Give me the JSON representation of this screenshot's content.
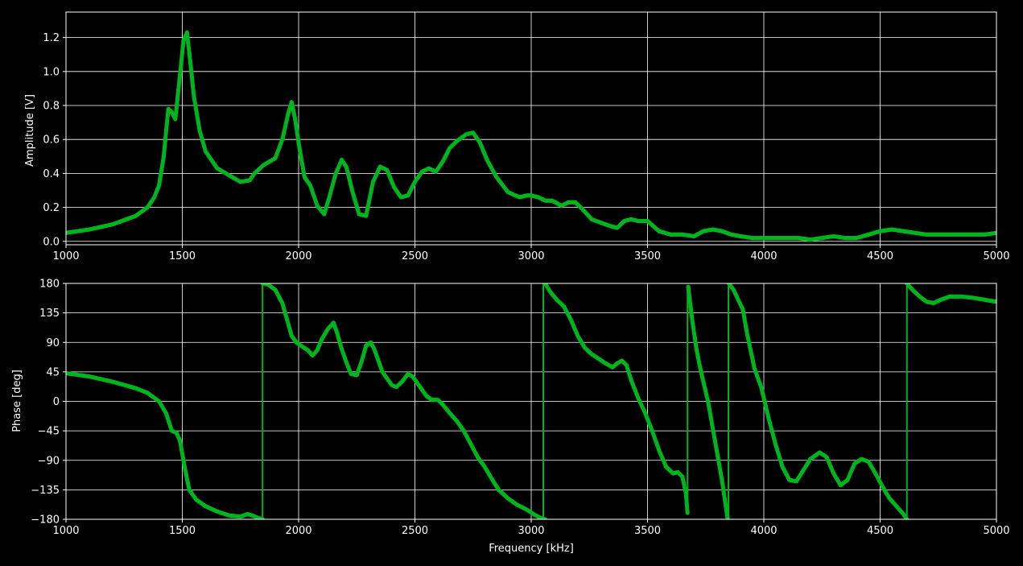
{
  "figure": {
    "background": "#000000",
    "axis_color": "#ffffff",
    "grid_color": "#ffffff",
    "trace_color": "#00b41e",
    "ref_color": "#d8d8b4"
  },
  "chart_data": [
    {
      "type": "line",
      "title": "",
      "xlabel": "",
      "ylabel": "Amplitude [V]",
      "xlim": [
        1000,
        5000
      ],
      "ylim": [
        -0.02,
        1.35
      ],
      "grid": true,
      "xticks": [
        1000,
        1500,
        2000,
        2500,
        3000,
        3500,
        4000,
        4500,
        5000
      ],
      "xtick_labels": [
        "1000",
        "1500",
        "2000",
        "2500",
        "3000",
        "3500",
        "4000",
        "4500",
        "5000"
      ],
      "yticks": [
        0.0,
        0.2,
        0.4,
        0.6,
        0.8,
        1.0,
        1.2
      ],
      "ytick_labels": [
        "0.0",
        "0.2",
        "0.4",
        "0.6",
        "0.8",
        "1.0",
        "1.2"
      ],
      "series": [
        {
          "color": "#00b41e",
          "markers": true,
          "x": [
            1000,
            1100,
            1200,
            1300,
            1350,
            1380,
            1400,
            1420,
            1440,
            1455,
            1470,
            1490,
            1505,
            1520,
            1535,
            1550,
            1575,
            1600,
            1650,
            1700,
            1750,
            1790,
            1810,
            1850,
            1900,
            1930,
            1955,
            1970,
            1985,
            2000,
            2025,
            2050,
            2080,
            2110,
            2130,
            2160,
            2185,
            2205,
            2230,
            2260,
            2290,
            2320,
            2350,
            2380,
            2410,
            2440,
            2470,
            2500,
            2530,
            2560,
            2590,
            2620,
            2650,
            2680,
            2720,
            2750,
            2780,
            2810,
            2850,
            2900,
            2950,
            2980,
            3000,
            3030,
            3060,
            3090,
            3130,
            3160,
            3190,
            3220,
            3260,
            3300,
            3340,
            3370,
            3400,
            3430,
            3460,
            3500,
            3550,
            3600,
            3650,
            3700,
            3740,
            3780,
            3820,
            3860,
            3900,
            3950,
            4000,
            4050,
            4100,
            4150,
            4200,
            4250,
            4300,
            4350,
            4400,
            4450,
            4500,
            4550,
            4600,
            4650,
            4700,
            4750,
            4800,
            4850,
            4900,
            4950,
            5000
          ],
          "y": [
            0.05,
            0.07,
            0.1,
            0.15,
            0.2,
            0.26,
            0.33,
            0.5,
            0.78,
            0.76,
            0.72,
            0.98,
            1.18,
            1.23,
            1.05,
            0.85,
            0.65,
            0.53,
            0.43,
            0.39,
            0.35,
            0.36,
            0.4,
            0.45,
            0.49,
            0.6,
            0.75,
            0.82,
            0.72,
            0.58,
            0.38,
            0.33,
            0.21,
            0.16,
            0.25,
            0.4,
            0.48,
            0.44,
            0.3,
            0.16,
            0.15,
            0.35,
            0.44,
            0.42,
            0.32,
            0.26,
            0.27,
            0.35,
            0.41,
            0.43,
            0.41,
            0.47,
            0.55,
            0.59,
            0.63,
            0.64,
            0.58,
            0.48,
            0.38,
            0.29,
            0.26,
            0.27,
            0.27,
            0.26,
            0.24,
            0.24,
            0.21,
            0.23,
            0.23,
            0.19,
            0.13,
            0.11,
            0.09,
            0.08,
            0.12,
            0.13,
            0.12,
            0.12,
            0.06,
            0.04,
            0.04,
            0.03,
            0.06,
            0.07,
            0.06,
            0.04,
            0.03,
            0.02,
            0.02,
            0.02,
            0.02,
            0.02,
            0.01,
            0.02,
            0.03,
            0.02,
            0.02,
            0.04,
            0.06,
            0.07,
            0.06,
            0.05,
            0.04,
            0.04,
            0.04,
            0.04,
            0.04,
            0.04,
            0.05
          ]
        }
      ]
    },
    {
      "type": "line",
      "title": "",
      "xlabel": "Frequency [kHz]",
      "ylabel": "Phase [deg]",
      "xlim": [
        1000,
        5000
      ],
      "ylim": [
        -180,
        180
      ],
      "grid": true,
      "xticks": [
        1000,
        1500,
        2000,
        2500,
        3000,
        3500,
        4000,
        4500,
        5000
      ],
      "xtick_labels": [
        "1000",
        "1500",
        "2000",
        "2500",
        "3000",
        "3500",
        "4000",
        "4500",
        "5000"
      ],
      "yticks": [
        -180,
        -135,
        -90,
        -45,
        0,
        45,
        90,
        135,
        180
      ],
      "ytick_labels": [
        "−180",
        "−135",
        "−90",
        "−45",
        "0",
        "45",
        "90",
        "135",
        "180"
      ],
      "series": [
        {
          "color": "#00b41e",
          "markers": true,
          "segments": [
            {
              "x": [
                1000,
                1100,
                1200,
                1300,
                1350,
                1400,
                1430,
                1455,
                1475,
                1490,
                1510,
                1530,
                1560,
                1600,
                1650,
                1700,
                1750,
                1780,
                1800,
                1820,
                1845
              ],
              "y": [
                43,
                38,
                30,
                20,
                13,
                0,
                -18,
                -45,
                -48,
                -60,
                -100,
                -135,
                -150,
                -160,
                -168,
                -174,
                -176,
                -172,
                -174,
                -177,
                -180
              ]
            },
            {
              "x": [
                1845,
                1870,
                1900,
                1930,
                1950,
                1970,
                1990,
                2010,
                2040,
                2060,
                2080,
                2100,
                2125,
                2150,
                2165,
                2185,
                2205,
                2225,
                2250,
                2270,
                2290,
                2310,
                2325,
                2340,
                2360,
                2380,
                2400,
                2420,
                2445,
                2470,
                2490,
                2510,
                2530,
                2550,
                2570,
                2600,
                2620,
                2650,
                2680,
                2710,
                2740,
                2770,
                2800,
                2830,
                2860,
                2900,
                2940,
                2980,
                3010,
                3040,
                3060
              ],
              "y": [
                180,
                178,
                170,
                150,
                125,
                100,
                90,
                85,
                78,
                70,
                78,
                95,
                110,
                120,
                105,
                80,
                60,
                42,
                40,
                60,
                85,
                90,
                80,
                65,
                45,
                35,
                25,
                22,
                30,
                42,
                38,
                28,
                18,
                8,
                3,
                2,
                -5,
                -18,
                -30,
                -45,
                -65,
                -85,
                -100,
                -118,
                -135,
                -148,
                -158,
                -165,
                -172,
                -178,
                -180
              ]
            },
            {
              "x": [
                3060,
                3080,
                3110,
                3140,
                3170,
                3200,
                3230,
                3260,
                3290,
                3320,
                3350,
                3370,
                3390,
                3410,
                3430,
                3460,
                3490,
                3520,
                3550,
                3580,
                3610,
                3630,
                3650,
                3665,
                3672
              ],
              "y": [
                180,
                168,
                155,
                145,
                125,
                100,
                82,
                72,
                65,
                58,
                52,
                58,
                62,
                55,
                32,
                5,
                -18,
                -45,
                -75,
                -100,
                -110,
                -108,
                -115,
                -140,
                -170
              ]
            },
            {
              "x": [
                3675,
                3690,
                3710,
                3730,
                3760,
                3790,
                3820,
                3845
              ],
              "y": [
                175,
                130,
                80,
                45,
                0,
                -60,
                -120,
                -180
              ]
            },
            {
              "x": [
                3850,
                3870,
                3890,
                3910,
                3930,
                3960,
                3990,
                4020,
                4050,
                4080,
                4110,
                4140,
                4170,
                4200,
                4240,
                4270,
                4300,
                4330,
                4360,
                4390,
                4420,
                4450,
                4480,
                4510,
                4540,
                4570,
                4600,
                4615
              ],
              "y": [
                180,
                170,
                155,
                140,
                100,
                50,
                20,
                -25,
                -65,
                -100,
                -120,
                -122,
                -105,
                -88,
                -78,
                -85,
                -110,
                -128,
                -120,
                -95,
                -88,
                -92,
                -110,
                -130,
                -148,
                -160,
                -172,
                -180
              ]
            },
            {
              "x": [
                4615,
                4640,
                4670,
                4700,
                4730,
                4760,
                4800,
                4850,
                4900,
                4950,
                5000
              ],
              "y": [
                180,
                170,
                160,
                152,
                150,
                155,
                160,
                160,
                158,
                155,
                152
              ]
            }
          ],
          "wraps": [
            {
              "x": 1845,
              "y_from": -180,
              "y_to": 180
            },
            {
              "x": 3052,
              "y_from": -180,
              "y_to": 180
            },
            {
              "x": 3672,
              "y_from": -170,
              "y_to": 175
            },
            {
              "x": 3848,
              "y_from": -180,
              "y_to": 180
            },
            {
              "x": 4615,
              "y_from": -180,
              "y_to": 180
            }
          ]
        }
      ]
    }
  ]
}
